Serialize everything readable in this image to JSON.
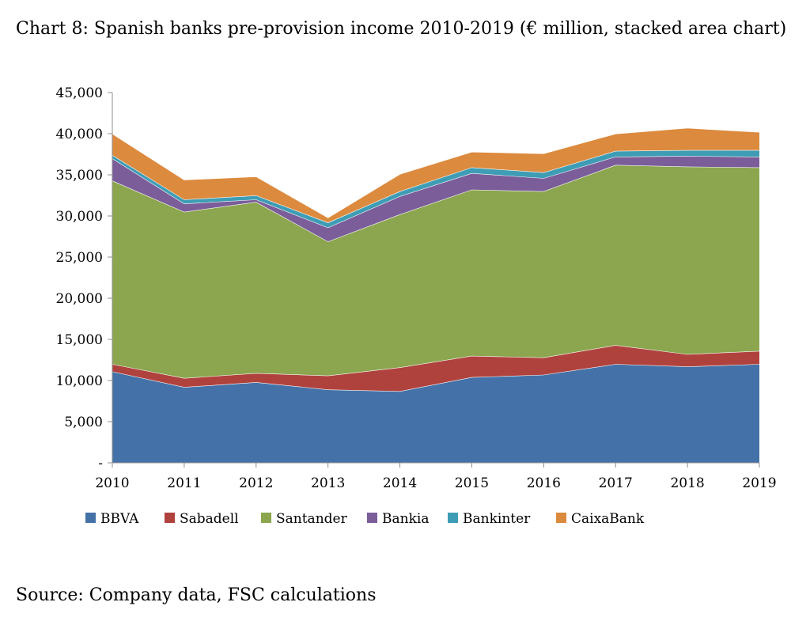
{
  "title": "Chart 8: Spanish banks pre-provision income 2010-2019 (€ million, stacked area chart)",
  "source": "Source: Company data, FSC calculations",
  "chart_data": {
    "type": "area",
    "stacked": true,
    "x": [
      "2010",
      "2011",
      "2012",
      "2013",
      "2014",
      "2015",
      "2016",
      "2017",
      "2018",
      "2019"
    ],
    "ylim": [
      0,
      45000
    ],
    "yticks": [
      0,
      5000,
      10000,
      15000,
      20000,
      25000,
      30000,
      35000,
      40000,
      45000
    ],
    "ytick_labels": [
      "-",
      "5,000",
      "10,000",
      "15,000",
      "20,000",
      "25,000",
      "30,000",
      "35,000",
      "40,000",
      "45,000"
    ],
    "grid": false,
    "legend": "bottom",
    "series": [
      {
        "name": "BBVA",
        "color": "#4472a8",
        "values": [
          11100,
          9200,
          9800,
          8900,
          8700,
          10400,
          10700,
          12000,
          11700,
          12000
        ]
      },
      {
        "name": "Sabadell",
        "color": "#b0423e",
        "values": [
          900,
          1100,
          1100,
          1700,
          2900,
          2600,
          2100,
          2300,
          1500,
          1600
        ]
      },
      {
        "name": "Santander",
        "color": "#8ba64e",
        "values": [
          22300,
          20200,
          20800,
          16300,
          18600,
          20200,
          20200,
          21900,
          22800,
          22300
        ]
      },
      {
        "name": "Bankia",
        "color": "#7b5d9a",
        "values": [
          2700,
          1000,
          300,
          1700,
          2200,
          2000,
          1600,
          1000,
          1300,
          1300
        ]
      },
      {
        "name": "Bankinter",
        "color": "#3e9db5",
        "values": [
          400,
          500,
          500,
          600,
          600,
          700,
          700,
          700,
          700,
          800
        ]
      },
      {
        "name": "CaixaBank",
        "color": "#dc8a3e",
        "values": [
          2600,
          2400,
          2300,
          600,
          2100,
          1900,
          2300,
          2100,
          2700,
          2200
        ]
      }
    ]
  }
}
